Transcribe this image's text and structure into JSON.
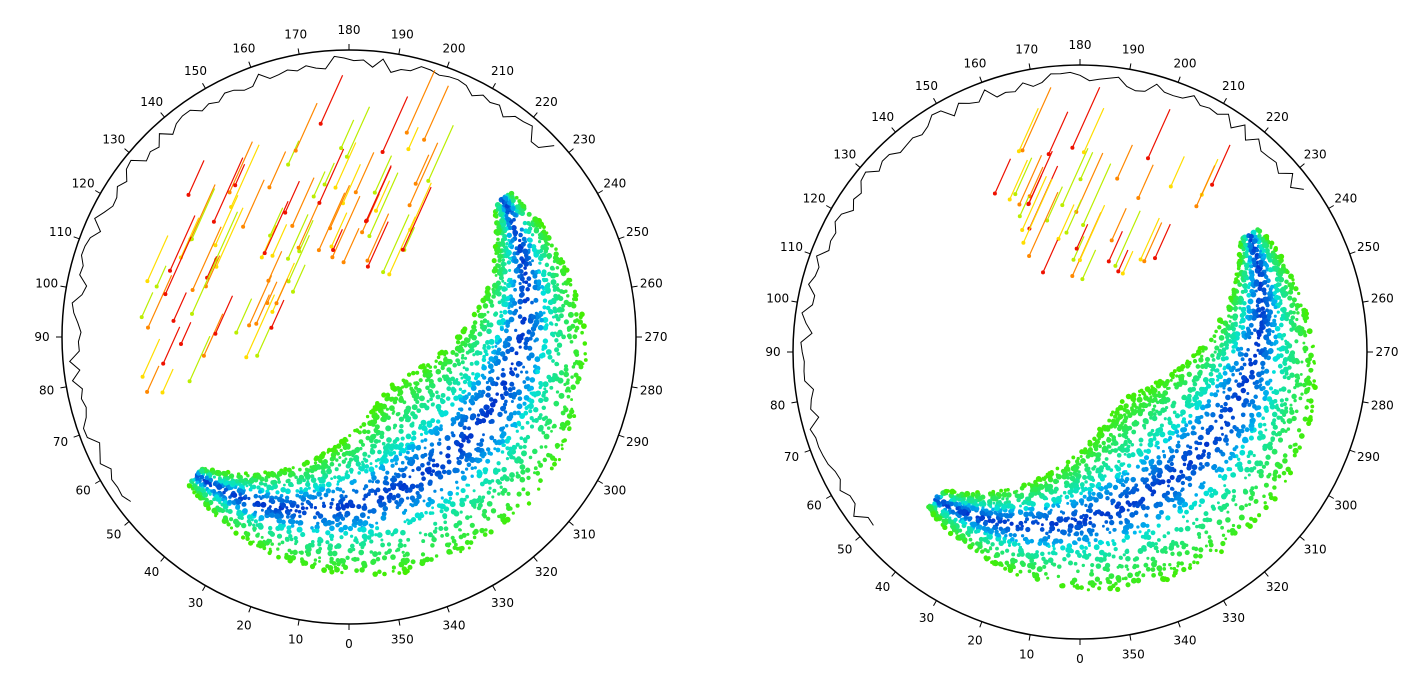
{
  "chart_data": [
    {
      "type": "scatter",
      "title": "",
      "coordinate_system": "polar",
      "angle_direction": "counterclockwise",
      "angle_zero_position": "bottom",
      "tick_labels": [
        "0",
        "10",
        "20",
        "30",
        "40",
        "50",
        "60",
        "70",
        "80",
        "90",
        "100",
        "110",
        "120",
        "130",
        "140",
        "150",
        "160",
        "170",
        "180",
        "190",
        "200",
        "210",
        "220",
        "230",
        "240",
        "250",
        "260",
        "270",
        "280",
        "290",
        "300",
        "310",
        "320",
        "330",
        "340",
        "350"
      ],
      "colormap": [
        "#0033cc",
        "#0077ee",
        "#00b8f0",
        "#00e0e0",
        "#22dd66",
        "#44ee00",
        "#bbee00",
        "#ffdd00",
        "#ff8800",
        "#ee1100"
      ],
      "band": {
        "angle_start": 48,
        "angle_peak": 310,
        "angle_end": 228,
        "color_inner": "#0044dd",
        "color_outer": "#33ee00"
      },
      "arrows": {
        "color": "#ee1100",
        "region_angles": [
          60,
          200
        ]
      },
      "legend": "none"
    },
    {
      "type": "scatter",
      "title": "",
      "coordinate_system": "polar",
      "angle_direction": "counterclockwise",
      "angle_zero_position": "bottom",
      "tick_labels": [
        "0",
        "10",
        "20",
        "30",
        "40",
        "50",
        "60",
        "70",
        "80",
        "90",
        "100",
        "110",
        "120",
        "130",
        "140",
        "150",
        "160",
        "170",
        "180",
        "190",
        "200",
        "210",
        "220",
        "230",
        "240",
        "250",
        "260",
        "270",
        "280",
        "290",
        "300",
        "310",
        "320",
        "330",
        "340",
        "350"
      ],
      "colormap": [
        "#0033cc",
        "#0077ee",
        "#00b8f0",
        "#00e0e0",
        "#22dd66",
        "#44ee00",
        "#bbee00",
        "#ffdd00",
        "#ff8800",
        "#ee1100"
      ],
      "band": {
        "angle_start": 45,
        "angle_peak": 300,
        "angle_end": 235,
        "color_inner": "#0044dd",
        "color_outer": "#33ee00"
      },
      "arrows": {
        "color": "#ee1100",
        "region_angles": [
          65,
          220
        ]
      },
      "legend": "none"
    }
  ]
}
